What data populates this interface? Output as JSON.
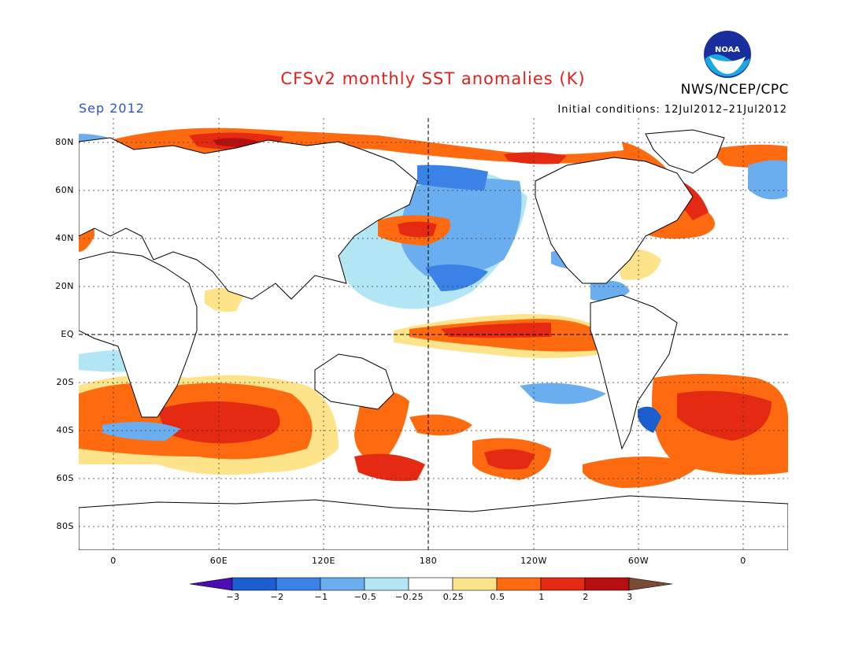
{
  "title": "CFSv2 monthly SST anomalies (K)",
  "month": "Sep 2012",
  "initial_conditions": "Initial conditions: 12Jul2012–21Jul2012",
  "organization": "NWS/NCEP/CPC",
  "logo_text": "NOAA",
  "lat_labels": [
    "80N",
    "60N",
    "40N",
    "20N",
    "EQ",
    "20S",
    "40S",
    "60S",
    "80S"
  ],
  "lon_labels": [
    "0",
    "60E",
    "120E",
    "180",
    "120W",
    "60W",
    "0"
  ],
  "colorbar": {
    "tick_labels": [
      "−3",
      "−2",
      "−1",
      "−0.5",
      "−0.25",
      "0.25",
      "0.5",
      "1",
      "2",
      "3"
    ],
    "colors": [
      "#4b0eb0",
      "#1a5ed0",
      "#3a82e6",
      "#6aaef0",
      "#b2e6f4",
      "#ffffff",
      "#fde48a",
      "#fd6a10",
      "#e42a12",
      "#b50f0f",
      "#7a4a38"
    ]
  }
}
